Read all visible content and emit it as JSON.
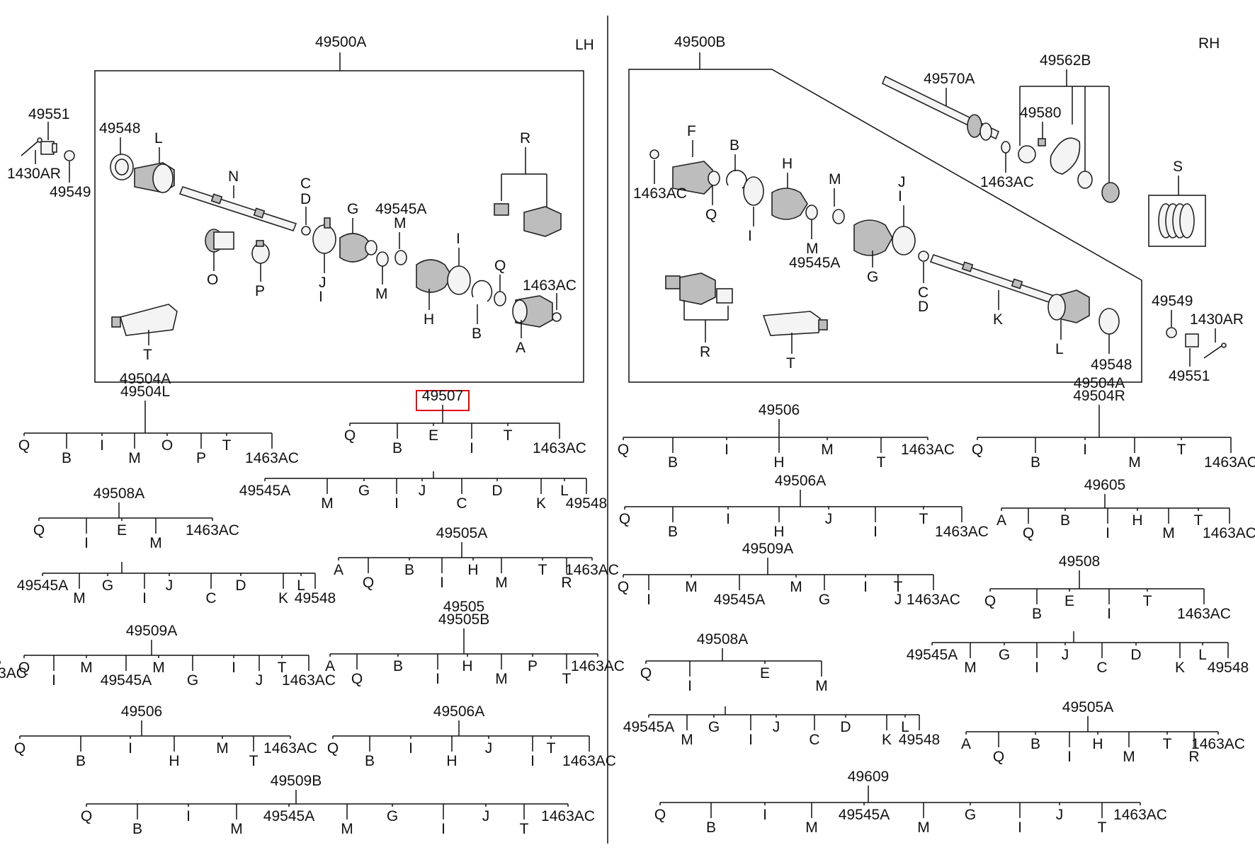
{
  "sides": {
    "left": "LH",
    "right": "RH"
  },
  "assemblies": {
    "left": "49500A",
    "right": "49500B"
  },
  "left_callouts": {
    "c49551": "49551",
    "c49548": "49548",
    "c1430AR": "1430AR",
    "c49549": "49549",
    "L": "L",
    "N": "N",
    "R": "R",
    "C": "C",
    "D": "D",
    "G": "G",
    "c49545A": "49545A",
    "M1": "M",
    "O": "O",
    "P": "P",
    "J": "J",
    "I1": "I",
    "M2": "M",
    "I2": "I",
    "H": "H",
    "Q": "Q",
    "c1463AC": "1463AC",
    "B": "B",
    "A": "A",
    "T": "T"
  },
  "right_callouts": {
    "c49570A": "49570A",
    "c49562B": "49562B",
    "c49580": "49580",
    "c1463AC_top": "1463AC",
    "S": "S",
    "F": "F",
    "B": "B",
    "H": "H",
    "M1": "M",
    "J": "J",
    "I1": "I",
    "c1463AC": "1463AC",
    "Q": "Q",
    "I2": "I",
    "M2": "M",
    "c49545A": "49545A",
    "G": "G",
    "C": "C",
    "D": "D",
    "K": "K",
    "L": "L",
    "c49548": "49548",
    "R": "R",
    "T": "T",
    "c49549": "49549",
    "c1430AR": "1430AR",
    "c49551": "49551"
  },
  "highlighted_part": "49507",
  "kits": [
    {
      "id": "k1",
      "title1": "49504A",
      "title2": "49504L",
      "items": [
        "Q",
        "B",
        "I",
        "M",
        "O",
        "P",
        "T",
        "1463AC"
      ]
    },
    {
      "id": "k2",
      "title1": "49507",
      "items": [
        "Q",
        "B",
        "E",
        "I",
        "T",
        "1463AC"
      ],
      "sub": {
        "title": "E",
        "items": [
          "49545A",
          "M",
          "G",
          "I",
          "J",
          "C",
          "D",
          "K",
          "L",
          "49548"
        ]
      }
    },
    {
      "id": "k3",
      "title1": "49508A",
      "items": [
        "Q",
        "I",
        "E",
        "M",
        "1463AC"
      ],
      "sub": {
        "title": "E",
        "items": [
          "49545A",
          "M",
          "G",
          "I",
          "J",
          "C",
          "D",
          "K",
          "L",
          "49548"
        ]
      }
    },
    {
      "id": "k4",
      "title1": "49505A",
      "items": [
        "A",
        "Q",
        "B",
        "I",
        "H",
        "M",
        "T",
        "R",
        "1463AC"
      ]
    },
    {
      "id": "k5",
      "title1": "49509A",
      "items": [
        "Q",
        "I",
        "M",
        "49545A",
        "M",
        "G",
        "I",
        "J",
        "T",
        "1463AC"
      ]
    },
    {
      "id": "k6",
      "title1": "49505",
      "title2": "49505B",
      "items": [
        "A",
        "Q",
        "B",
        "I",
        "H",
        "M",
        "P",
        "T",
        "1463AC"
      ]
    },
    {
      "id": "k7",
      "title1": "49506",
      "items": [
        "Q",
        "B",
        "I",
        "H",
        "M",
        "T",
        "1463AC"
      ]
    },
    {
      "id": "k8",
      "title1": "49506A",
      "items": [
        "Q",
        "B",
        "I",
        "H",
        "J",
        "I",
        "T",
        "1463AC"
      ]
    },
    {
      "id": "k9",
      "title1": "49509B",
      "items": [
        "Q",
        "B",
        "I",
        "M",
        "49545A",
        "M",
        "G",
        "I",
        "J",
        "T",
        "1463AC"
      ]
    },
    {
      "id": "k10",
      "title1": "49506",
      "items": [
        "Q",
        "B",
        "I",
        "H",
        "M",
        "T",
        "1463AC"
      ]
    },
    {
      "id": "k11",
      "title1": "49504A",
      "title2": "49504R",
      "items": [
        "Q",
        "B",
        "I",
        "M",
        "T",
        "1463AC"
      ]
    },
    {
      "id": "k12",
      "title1": "49506A",
      "items": [
        "Q",
        "B",
        "I",
        "H",
        "J",
        "I",
        "T",
        "1463AC"
      ]
    },
    {
      "id": "k13",
      "title1": "49605",
      "items": [
        "A",
        "Q",
        "B",
        "I",
        "H",
        "M",
        "T",
        "1463AC"
      ]
    },
    {
      "id": "k14",
      "title1": "49509A",
      "items": [
        "Q",
        "I",
        "M",
        "49545A",
        "M",
        "G",
        "I",
        "J",
        "T",
        "1463AC"
      ]
    },
    {
      "id": "k15",
      "title1": "49508",
      "items": [
        "Q",
        "B",
        "E",
        "I",
        "T",
        "1463AC"
      ],
      "sub": {
        "title": "E",
        "items": [
          "49545A",
          "M",
          "G",
          "I",
          "J",
          "C",
          "D",
          "K",
          "L",
          "49548"
        ]
      }
    },
    {
      "id": "k16",
      "title1": "49508A",
      "items": [
        "Q",
        "I",
        "E",
        "M",
        "1463AC"
      ],
      "sub": {
        "title": "E",
        "items": [
          "49545A",
          "M",
          "G",
          "I",
          "J",
          "C",
          "D",
          "K",
          "L",
          "49548"
        ]
      }
    },
    {
      "id": "k17",
      "title1": "49505A",
      "items": [
        "A",
        "Q",
        "B",
        "I",
        "H",
        "M",
        "T",
        "R",
        "1463AC"
      ]
    },
    {
      "id": "k18",
      "title1": "49609",
      "items": [
        "Q",
        "B",
        "I",
        "M",
        "49545A",
        "M",
        "G",
        "I",
        "J",
        "T",
        "1463AC"
      ]
    }
  ]
}
